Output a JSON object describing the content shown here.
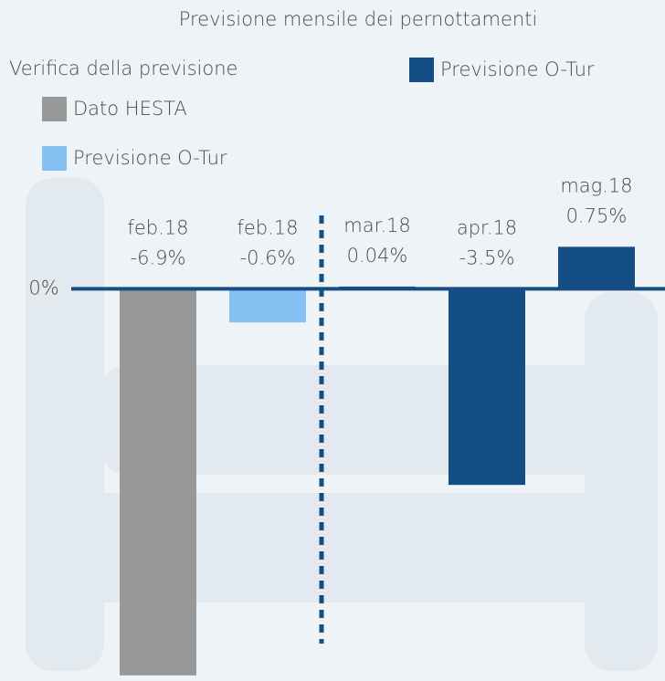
{
  "chart_data": {
    "type": "bar",
    "title": "Previsione mensile dei pernottamenti",
    "annotations": [
      "Verifica della previsione"
    ],
    "categories": [
      "feb.18",
      "feb.18",
      "mar.18",
      "apr.18",
      "mag.18"
    ],
    "series": [
      {
        "name": "Dato HESTA",
        "color": "#989898",
        "values": [
          -6.9,
          null,
          null,
          null,
          null
        ],
        "value_labels": [
          "-6.9%",
          null,
          null,
          null,
          null
        ]
      },
      {
        "name": "Previsione O-Tur",
        "color": "#86c1f3",
        "values": [
          null,
          -0.6,
          null,
          null,
          null
        ],
        "value_labels": [
          null,
          "-0.6%",
          null,
          null,
          null
        ]
      },
      {
        "name": "Previsione O-Tur",
        "color": "#154e85",
        "values": [
          null,
          null,
          0.04,
          -3.5,
          0.75
        ],
        "value_labels": [
          null,
          null,
          "0.04%",
          "-3.5%",
          "0.75%"
        ]
      }
    ],
    "ylim": [
      -7,
      1
    ],
    "yticks": [
      {
        "value": 0,
        "label": "0%"
      }
    ]
  }
}
